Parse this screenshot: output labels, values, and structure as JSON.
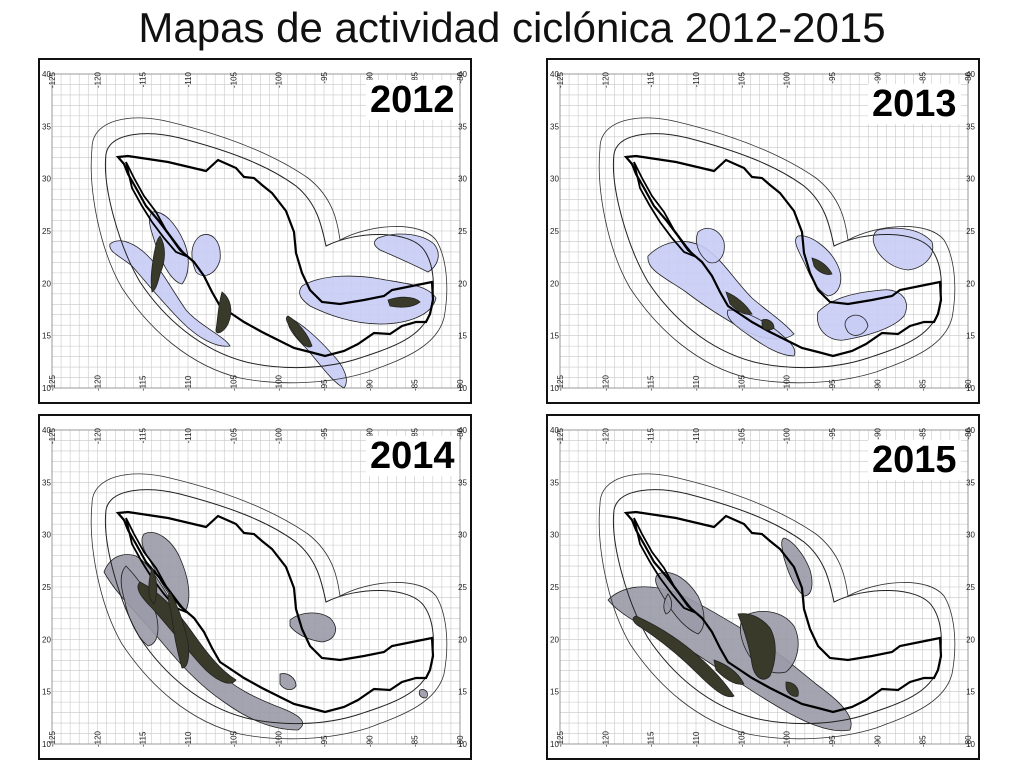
{
  "title": "Mapas de actividad ciclónica 2012-2015",
  "colors": {
    "light": "#c8ccf5",
    "gray": "#9a9aa8",
    "dark": "#3a3a2a",
    "grid": "#c8c8c8"
  },
  "lon_ticks": [
    "-125",
    "-120",
    "-115",
    "-110",
    "-105",
    "-100",
    "-95",
    "-90",
    "-85",
    "-80"
  ],
  "lat_ticks": [
    "10",
    "15",
    "20",
    "25",
    "30",
    "35",
    "40"
  ],
  "panels": [
    {
      "year": "2012",
      "style": "light"
    },
    {
      "year": "2013",
      "style": "light"
    },
    {
      "year": "2014",
      "style": "gray"
    },
    {
      "year": "2015",
      "style": "gray"
    }
  ]
}
